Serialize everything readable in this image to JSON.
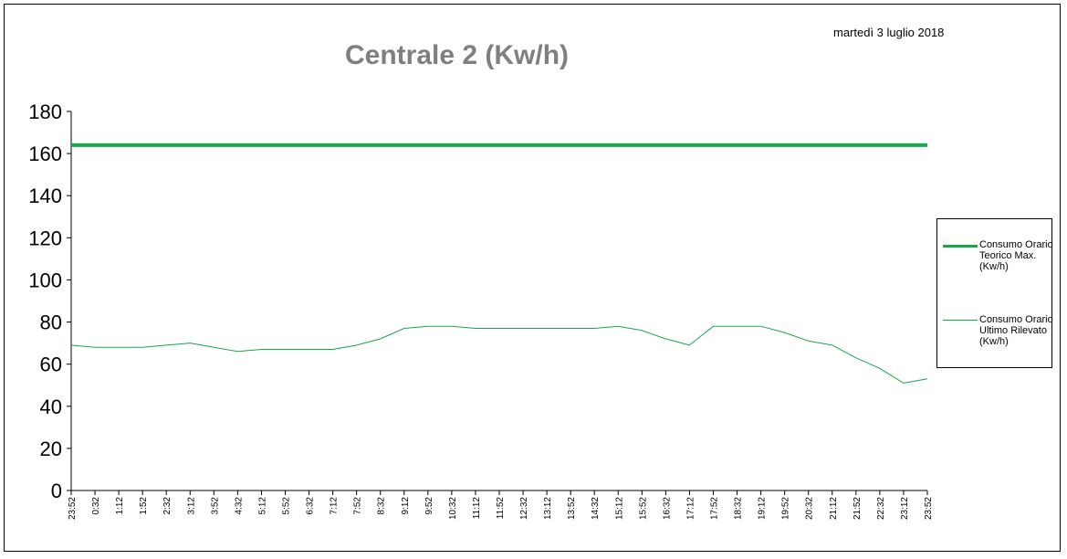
{
  "date_label": "martedì 3 luglio 2018",
  "chart_data": {
    "type": "line",
    "title": "Centrale 2 (Kw/h)",
    "xlabel": "",
    "ylabel": "",
    "ylim": [
      0,
      180
    ],
    "yticks": [
      0,
      20,
      40,
      60,
      80,
      100,
      120,
      140,
      160,
      180
    ],
    "grid": false,
    "legend_position": "right",
    "x_tick_labels": [
      "23:52",
      "0:32",
      "1:12",
      "1:52",
      "2:32",
      "3:12",
      "3:52",
      "4:32",
      "5:12",
      "5:52",
      "6:32",
      "7:12",
      "7:52",
      "8:32",
      "9:12",
      "9:52",
      "10:32",
      "11:12",
      "11:52",
      "12:32",
      "13:12",
      "13:52",
      "14:32",
      "15:12",
      "15:52",
      "16:32",
      "17:12",
      "17:52",
      "18:32",
      "19:12",
      "19:52",
      "20:32",
      "21:12",
      "21:52",
      "22:32",
      "23:12",
      "23:52"
    ],
    "series": [
      {
        "name": "Consumo Orario Teorico Max. (Kw/h)",
        "color": "#1aa64a",
        "values": [
          164,
          164,
          164,
          164,
          164,
          164,
          164,
          164,
          164,
          164,
          164,
          164,
          164,
          164,
          164,
          164,
          164,
          164,
          164,
          164,
          164,
          164,
          164,
          164,
          164,
          164,
          164,
          164,
          164,
          164,
          164,
          164,
          164,
          164,
          164,
          164,
          164
        ]
      },
      {
        "name": "Consumo Orario Ultimo Rilevato (Kw/h)",
        "color": "#1aa64a",
        "values": [
          69,
          68,
          68,
          68,
          69,
          70,
          68,
          66,
          67,
          67,
          67,
          67,
          69,
          72,
          77,
          78,
          78,
          77,
          77,
          77,
          77,
          77,
          77,
          78,
          76,
          72,
          69,
          78,
          78,
          78,
          75,
          71,
          69,
          63,
          58,
          51,
          53
        ]
      }
    ]
  }
}
